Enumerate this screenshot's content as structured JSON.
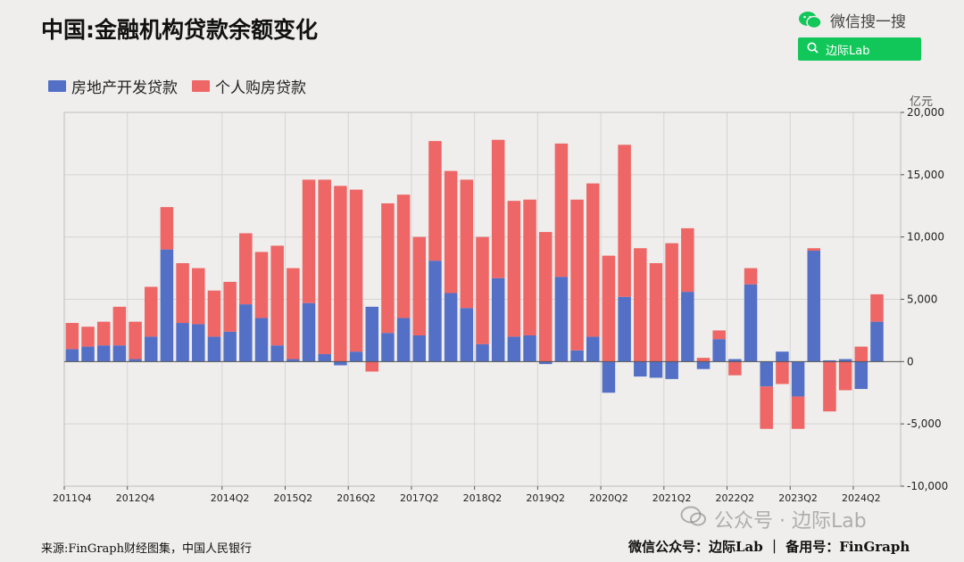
{
  "header": {
    "title": "中国:金融机构贷款余额变化",
    "wechat_label": "微信搜一搜",
    "search_text": "边际Lab"
  },
  "watermark": "公众号 · 边际Lab",
  "footer": {
    "source": "来源:FinGraph财经图集，中国人民银行",
    "credit": "微信公众号：边际Lab ｜ 备用号：FinGraph"
  },
  "colors": {
    "dev": "#5470c6",
    "mortgage": "#ee6666"
  },
  "chart_data": {
    "type": "bar",
    "stacked": true,
    "unit": "亿元",
    "ylim": [
      -10000,
      20000
    ],
    "yticks": [
      "-10,000",
      "-5,000",
      "0",
      "5,000",
      "10,000",
      "15,000",
      "20,000"
    ],
    "ytick_values": [
      -10000,
      -5000,
      0,
      5000,
      10000,
      15000,
      20000
    ],
    "categories": [
      "2011Q4",
      "2012Q1",
      "2012Q2",
      "2012Q3",
      "2012Q4",
      "2013Q1",
      "2013Q2",
      "2013Q3",
      "2013Q4",
      "2014Q1",
      "2014Q2",
      "2014Q3",
      "2014Q4",
      "2015Q1",
      "2015Q2",
      "2015Q3",
      "2015Q4",
      "2016Q1",
      "2016Q2",
      "2016Q3",
      "2016Q4",
      "2017Q1",
      "2017Q2",
      "2017Q3",
      "2017Q4",
      "2018Q1",
      "2018Q2",
      "2018Q3",
      "2018Q4",
      "2019Q1",
      "2019Q2",
      "2019Q3",
      "2019Q4",
      "2020Q1",
      "2020Q2",
      "2020Q3",
      "2020Q4",
      "2021Q1",
      "2021Q2",
      "2021Q3",
      "2021Q4",
      "2022Q1",
      "2022Q2",
      "2022Q3",
      "2022Q4",
      "2023Q1",
      "2023Q2",
      "2023Q3",
      "2023Q4",
      "2024Q1",
      "2024Q2",
      "2024Q3",
      "2024Q4"
    ],
    "xtick_labels": [
      "2011Q4",
      "2012Q4",
      "2014Q2",
      "2015Q2",
      "2016Q2",
      "2017Q2",
      "2018Q2",
      "2019Q2",
      "2020Q2",
      "2021Q2",
      "2022Q2",
      "2023Q2",
      "2024Q2"
    ],
    "legend_position": "top-left",
    "series": [
      {
        "name": "房地产开发贷款",
        "values": [
          1000,
          1200,
          1300,
          1300,
          200,
          2000,
          9000,
          3100,
          3000,
          2000,
          2400,
          4600,
          3500,
          1300,
          200,
          4700,
          600,
          -300,
          800,
          4400,
          2300,
          3500,
          2100,
          8100,
          5500,
          4300,
          1400,
          6700,
          2000,
          2100,
          -200,
          6800,
          900,
          2000,
          -2500,
          5200,
          -1200,
          -1300,
          -1400,
          5600,
          -600,
          1800,
          200,
          6200,
          -2000,
          800,
          -2800,
          8900,
          100,
          200,
          -2200,
          3200,
          0
        ],
        "stack_base": [
          1000,
          1200,
          1300,
          1300,
          200,
          2000,
          9000,
          3100,
          3000,
          2000,
          2400,
          4600,
          3500,
          1300,
          200,
          4700,
          600,
          -300,
          800,
          4400,
          2300,
          3500,
          2100,
          8100,
          5500,
          4300,
          1400,
          6700,
          2000,
          2100,
          -200,
          6800,
          900,
          2000,
          -2500,
          5200,
          -1200,
          -1300,
          -1400,
          5600,
          -600,
          1800,
          200,
          6200,
          -2000,
          800,
          -2800,
          8900,
          100,
          200,
          -2200,
          3200,
          0
        ]
      },
      {
        "name": "个人购房贷款",
        "values": [
          2100,
          1600,
          1900,
          3100,
          3000,
          4000,
          3400,
          4800,
          4500,
          3700,
          4000,
          5700,
          5300,
          8000,
          7300,
          9900,
          14000,
          14100,
          13000,
          -800,
          10400,
          9900,
          7900,
          9600,
          9800,
          10300,
          8600,
          11100,
          10900,
          10900,
          10400,
          10700,
          12100,
          12300,
          8500,
          12200,
          9100,
          7900,
          9500,
          5100,
          300,
          700,
          -1100,
          1300,
          -3400,
          -1800,
          -2600,
          200,
          -4000,
          -2300,
          1200,
          2200,
          0
        ]
      }
    ]
  }
}
